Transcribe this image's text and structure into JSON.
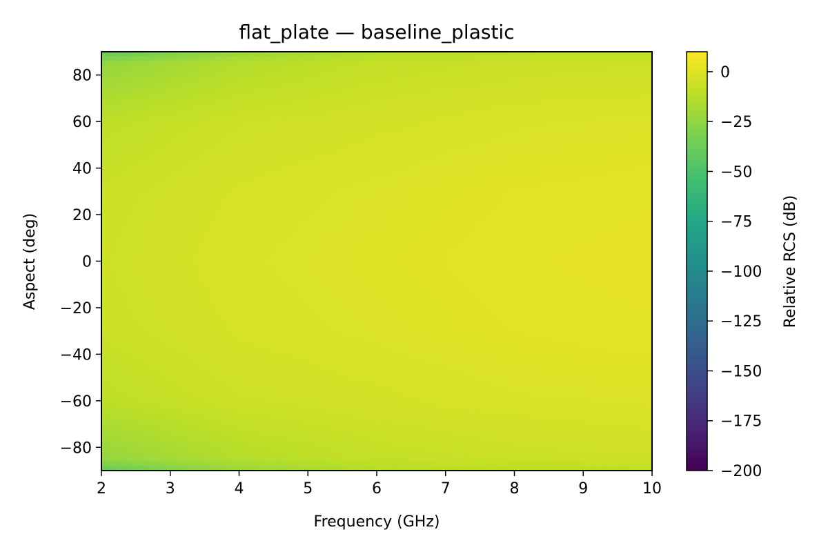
{
  "chart_data": {
    "type": "heatmap",
    "title": "flat_plate — baseline_plastic",
    "xlabel": "Frequency (GHz)",
    "ylabel": "Aspect (deg)",
    "xlim": [
      2,
      10
    ],
    "ylim": [
      -90,
      90
    ],
    "x_ticks": [
      2,
      3,
      4,
      5,
      6,
      7,
      8,
      9,
      10
    ],
    "y_ticks": [
      -80,
      -60,
      -40,
      -20,
      0,
      20,
      40,
      60,
      80
    ],
    "colorbar": {
      "label": "Relative RCS (dB)",
      "range": [
        -200,
        10
      ],
      "ticks": [
        -200,
        -175,
        -150,
        -125,
        -100,
        -75,
        -50,
        -25,
        0
      ],
      "colormap": "viridis",
      "placement": "right"
    },
    "x": [
      2,
      4,
      6,
      8,
      10
    ],
    "y": [
      -90,
      -85,
      -60,
      -30,
      0,
      30,
      60,
      85,
      90
    ],
    "values": [
      [
        -40,
        -22,
        -14,
        -12,
        -11
      ],
      [
        -24,
        -14,
        -9,
        -7,
        -6
      ],
      [
        -11,
        -6,
        -4,
        -2,
        -1
      ],
      [
        -7,
        -3,
        -1,
        1,
        2
      ],
      [
        -6,
        -2,
        0,
        2,
        3
      ],
      [
        -7,
        -3,
        -1,
        1,
        2
      ],
      [
        -11,
        -6,
        -4,
        -2,
        -1
      ],
      [
        -24,
        -14,
        -9,
        -7,
        -6
      ],
      [
        -40,
        -22,
        -14,
        -12,
        -11
      ]
    ],
    "grid": false
  }
}
